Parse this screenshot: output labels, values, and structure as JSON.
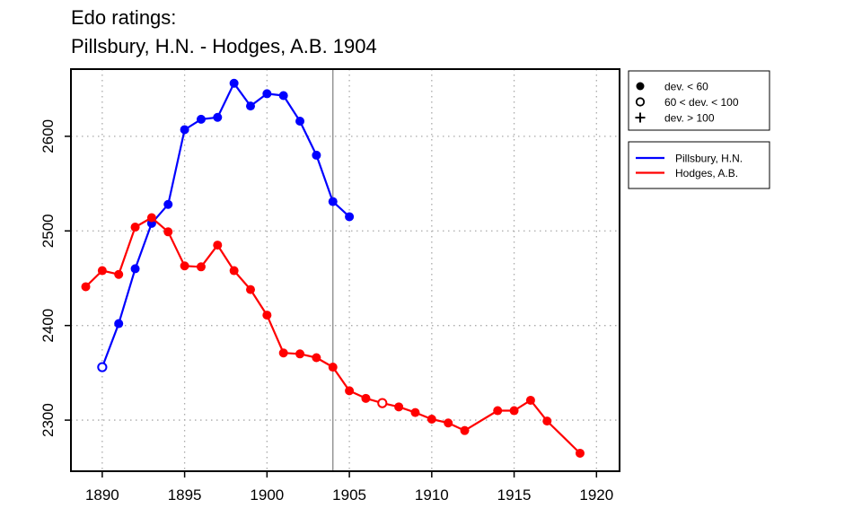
{
  "chart_data": {
    "type": "line",
    "title": [
      "Edo ratings:",
      "Pillsbury, H.N. - Hodges, A.B. 1904"
    ],
    "xlabel": "",
    "ylabel": "",
    "xlim": [
      1888.1,
      1921.4
    ],
    "ylim": [
      2246,
      2671
    ],
    "x_ticks": [
      1890,
      1895,
      1900,
      1905,
      1910,
      1915,
      1920
    ],
    "y_ticks": [
      2300,
      2400,
      2500,
      2600
    ],
    "grid": true,
    "marker_year": 1904,
    "series": [
      {
        "name": "Pillsbury, H.N.",
        "color": "#0000ff",
        "x": [
          1890,
          1891,
          1892,
          1893,
          1894,
          1895,
          1896,
          1897,
          1898,
          1899,
          1900,
          1901,
          1902,
          1903,
          1904,
          1905
        ],
        "y": [
          2356,
          2402,
          2460,
          2508,
          2528,
          2607,
          2618,
          2620,
          2656,
          2632,
          2645,
          2643,
          2616,
          2580,
          2531,
          2515
        ],
        "markers": [
          "open",
          "filled",
          "filled",
          "filled",
          "filled",
          "filled",
          "filled",
          "filled",
          "filled",
          "filled",
          "filled",
          "filled",
          "filled",
          "filled",
          "filled",
          "filled"
        ]
      },
      {
        "name": "Hodges, A.B.",
        "color": "#ff0000",
        "x": [
          1889,
          1890,
          1891,
          1892,
          1893,
          1894,
          1895,
          1896,
          1897,
          1898,
          1899,
          1900,
          1901,
          1902,
          1903,
          1904,
          1905,
          1906,
          1907,
          1908,
          1909,
          1910,
          1911,
          1912,
          1914,
          1915,
          1916,
          1917,
          1919
        ],
        "y": [
          2441,
          2458,
          2454,
          2504,
          2514,
          2499,
          2463,
          2462,
          2485,
          2458,
          2438,
          2411,
          2371,
          2370,
          2366,
          2356,
          2331,
          2323,
          2318,
          2314,
          2308,
          2301,
          2297,
          2289,
          2310,
          2310,
          2321,
          2299,
          2265
        ],
        "markers": [
          "filled",
          "filled",
          "filled",
          "filled",
          "filled",
          "filled",
          "filled",
          "filled",
          "filled",
          "filled",
          "filled",
          "filled",
          "filled",
          "filled",
          "filled",
          "filled",
          "filled",
          "filled",
          "open",
          "filled",
          "filled",
          "filled",
          "filled",
          "filled",
          "filled",
          "filled",
          "filled",
          "filled",
          "filled"
        ]
      }
    ],
    "marker_legend": [
      {
        "symbol": "filled",
        "label": "dev. < 60"
      },
      {
        "symbol": "open",
        "label": "60 < dev. < 100"
      },
      {
        "symbol": "plus",
        "label": "dev. > 100"
      }
    ],
    "legend_position": "right"
  }
}
